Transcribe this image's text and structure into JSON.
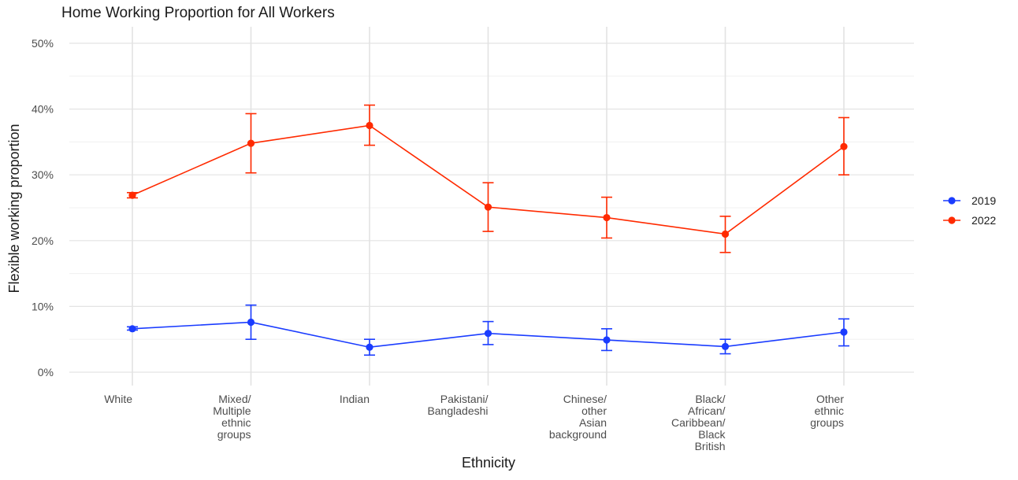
{
  "chart_data": {
    "type": "line",
    "title": "Home Working Proportion for All Workers",
    "xlabel": "Ethnicity",
    "ylabel": "Flexible working proportion",
    "ylim": [
      0,
      50
    ],
    "y_ticks": [
      0,
      10,
      20,
      30,
      40,
      50
    ],
    "y_tick_labels": [
      "0%",
      "10%",
      "20%",
      "30%",
      "40%",
      "50%"
    ],
    "grid": true,
    "legend_position": "right",
    "categories": [
      [
        "White"
      ],
      [
        "Mixed/",
        "Multiple",
        "ethnic",
        "groups"
      ],
      [
        "Indian"
      ],
      [
        "Pakistani/",
        "Bangladeshi"
      ],
      [
        "Chinese/",
        "other",
        "Asian",
        "background"
      ],
      [
        "Black/",
        "African/",
        "Caribbean/",
        "Black",
        "British"
      ],
      [
        "Other",
        "ethnic",
        "groups"
      ]
    ],
    "series": [
      {
        "name": "2019",
        "color": "#1a3cff",
        "values": [
          6.6,
          7.6,
          3.8,
          5.9,
          4.9,
          3.9,
          6.1
        ],
        "lower": [
          6.4,
          5.0,
          2.6,
          4.2,
          3.3,
          2.8,
          4.0
        ],
        "upper": [
          6.9,
          10.2,
          5.0,
          7.7,
          6.6,
          5.0,
          8.1
        ]
      },
      {
        "name": "2022",
        "color": "#ff2a00",
        "values": [
          26.9,
          34.8,
          37.5,
          25.1,
          23.5,
          21.0,
          34.3
        ],
        "lower": [
          26.5,
          30.3,
          34.5,
          21.4,
          20.4,
          18.2,
          30.0
        ],
        "upper": [
          27.3,
          39.3,
          40.6,
          28.8,
          26.6,
          23.7,
          38.7
        ]
      }
    ]
  }
}
